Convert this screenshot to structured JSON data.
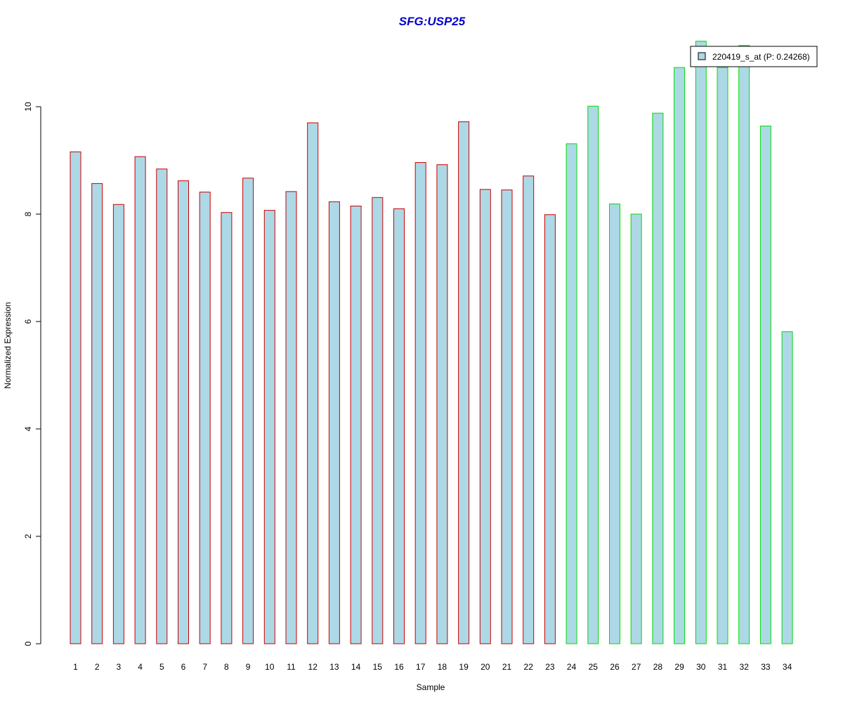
{
  "chart_data": {
    "type": "bar",
    "title": "SFG:USP25",
    "xlabel": "Sample",
    "ylabel": "Normalized Expression",
    "ylim": [
      0,
      11.2
    ],
    "y_ticks": [
      "0",
      "2",
      "4",
      "6",
      "8",
      "10"
    ],
    "categories": [
      "1",
      "2",
      "3",
      "4",
      "5",
      "6",
      "7",
      "8",
      "9",
      "10",
      "11",
      "12",
      "13",
      "14",
      "15",
      "16",
      "17",
      "18",
      "19",
      "20",
      "21",
      "22",
      "23",
      "24",
      "25",
      "26",
      "27",
      "28",
      "29",
      "30",
      "31",
      "32",
      "33",
      "34"
    ],
    "values": [
      9.16,
      8.57,
      8.18,
      9.07,
      8.84,
      8.62,
      8.41,
      8.03,
      8.67,
      8.07,
      8.42,
      9.7,
      8.23,
      8.15,
      8.31,
      8.1,
      8.96,
      8.92,
      9.72,
      8.46,
      8.45,
      8.71,
      7.99,
      9.31,
      10.01,
      8.19,
      8.0,
      9.88,
      10.73,
      11.22,
      10.73,
      11.14,
      9.64,
      5.81
    ],
    "groups": [
      "red",
      "red",
      "red",
      "red",
      "red",
      "red",
      "red",
      "red",
      "red",
      "red",
      "red",
      "red",
      "red",
      "red",
      "red",
      "red",
      "red",
      "red",
      "red",
      "red",
      "red",
      "red",
      "red",
      "green",
      "green",
      "green",
      "green",
      "green",
      "green",
      "green",
      "green",
      "green",
      "green",
      "green"
    ],
    "colors": {
      "fill": "#add8e6",
      "group_red": "#cc0000",
      "group_green": "#00dd00",
      "title": "#0000cd"
    },
    "legend": {
      "label": "220419_s_at (P: 0.24268)",
      "position": "top-right"
    },
    "grid": false
  }
}
